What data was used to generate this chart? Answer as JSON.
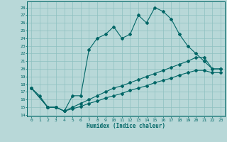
{
  "bg_color": "#b8d8d8",
  "line_color": "#006666",
  "grid_color": "#8ec0c0",
  "xlabel": "Humidex (Indice chaleur)",
  "xlim": [
    -0.5,
    23.5
  ],
  "ylim": [
    13.8,
    28.8
  ],
  "xticks": [
    0,
    1,
    2,
    3,
    4,
    5,
    6,
    7,
    8,
    9,
    10,
    11,
    12,
    13,
    14,
    15,
    16,
    17,
    18,
    19,
    20,
    21,
    22,
    23
  ],
  "yticks": [
    14,
    15,
    16,
    17,
    18,
    19,
    20,
    21,
    22,
    23,
    24,
    25,
    26,
    27,
    28
  ],
  "curve1_x": [
    0,
    1,
    2,
    3,
    4,
    5,
    6,
    7,
    8,
    9,
    10,
    11,
    12,
    13,
    14,
    15,
    16,
    17,
    18,
    19,
    20,
    21,
    22,
    23
  ],
  "curve1_y": [
    17.5,
    16.5,
    15.0,
    15.0,
    14.5,
    16.5,
    16.5,
    22.5,
    24.0,
    24.5,
    25.5,
    24.0,
    24.5,
    27.0,
    26.0,
    28.0,
    27.5,
    26.5,
    24.5,
    23.0,
    22.0,
    21.0,
    20.0,
    20.0
  ],
  "curve2_x": [
    0,
    2,
    3,
    4,
    5,
    6,
    7,
    8,
    9,
    10,
    11,
    12,
    13,
    14,
    15,
    16,
    17,
    18,
    19,
    20,
    21,
    22,
    23
  ],
  "curve2_y": [
    17.5,
    15.0,
    15.0,
    14.5,
    15.0,
    15.5,
    16.0,
    16.5,
    17.0,
    17.5,
    17.8,
    18.2,
    18.6,
    19.0,
    19.4,
    19.8,
    20.2,
    20.6,
    21.0,
    21.5,
    21.5,
    20.0,
    20.0
  ],
  "curve3_x": [
    0,
    2,
    3,
    4,
    5,
    6,
    7,
    8,
    9,
    10,
    11,
    12,
    13,
    14,
    15,
    16,
    17,
    18,
    19,
    20,
    21,
    22,
    23
  ],
  "curve3_y": [
    17.5,
    15.0,
    15.0,
    14.5,
    14.8,
    15.1,
    15.5,
    15.8,
    16.2,
    16.5,
    16.8,
    17.2,
    17.5,
    17.8,
    18.2,
    18.5,
    18.8,
    19.2,
    19.5,
    19.8,
    19.8,
    19.5,
    19.5
  ]
}
